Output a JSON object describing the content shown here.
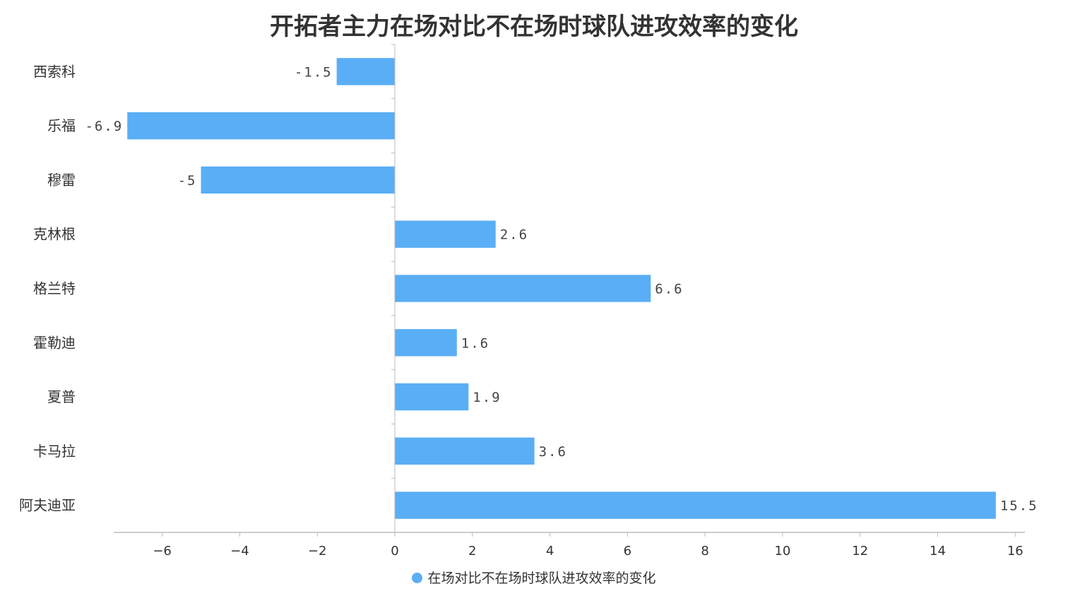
{
  "chart_data": {
    "type": "bar",
    "orientation": "horizontal",
    "title": "开拓者主力在场对比不在场时球队进攻效率的变化",
    "categories": [
      "西索科",
      "乐福",
      "穆雷",
      "克林根",
      "格兰特",
      "霍勒迪",
      "夏普",
      "卡马拉",
      "阿夫迪亚"
    ],
    "series": [
      {
        "name": "在场对比不在场时球队进攻效率的变化",
        "values": [
          -1.5,
          -6.9,
          -5,
          2.6,
          6.6,
          1.6,
          1.9,
          3.6,
          15.5
        ],
        "color": "#5aaef5"
      }
    ],
    "value_labels": [
      "-1.5",
      "-6.9",
      "-5",
      "2.6",
      "6.6",
      "1.6",
      "1.9",
      "3.6",
      "15.5"
    ],
    "xlim": [
      -7.25,
      16.25
    ],
    "xticks": [
      -6,
      -4,
      -2,
      0,
      2,
      4,
      6,
      8,
      10,
      12,
      14,
      16
    ],
    "xtick_labels": [
      "−6",
      "−4",
      "−2",
      "0",
      "2",
      "4",
      "6",
      "8",
      "10",
      "12",
      "14",
      "16"
    ],
    "grid": false,
    "legend_position": "bottom-center"
  },
  "colors": {
    "bar": "#5aaef5",
    "axis": "#bbbbbb",
    "text": "#333333",
    "label": "#444444"
  }
}
